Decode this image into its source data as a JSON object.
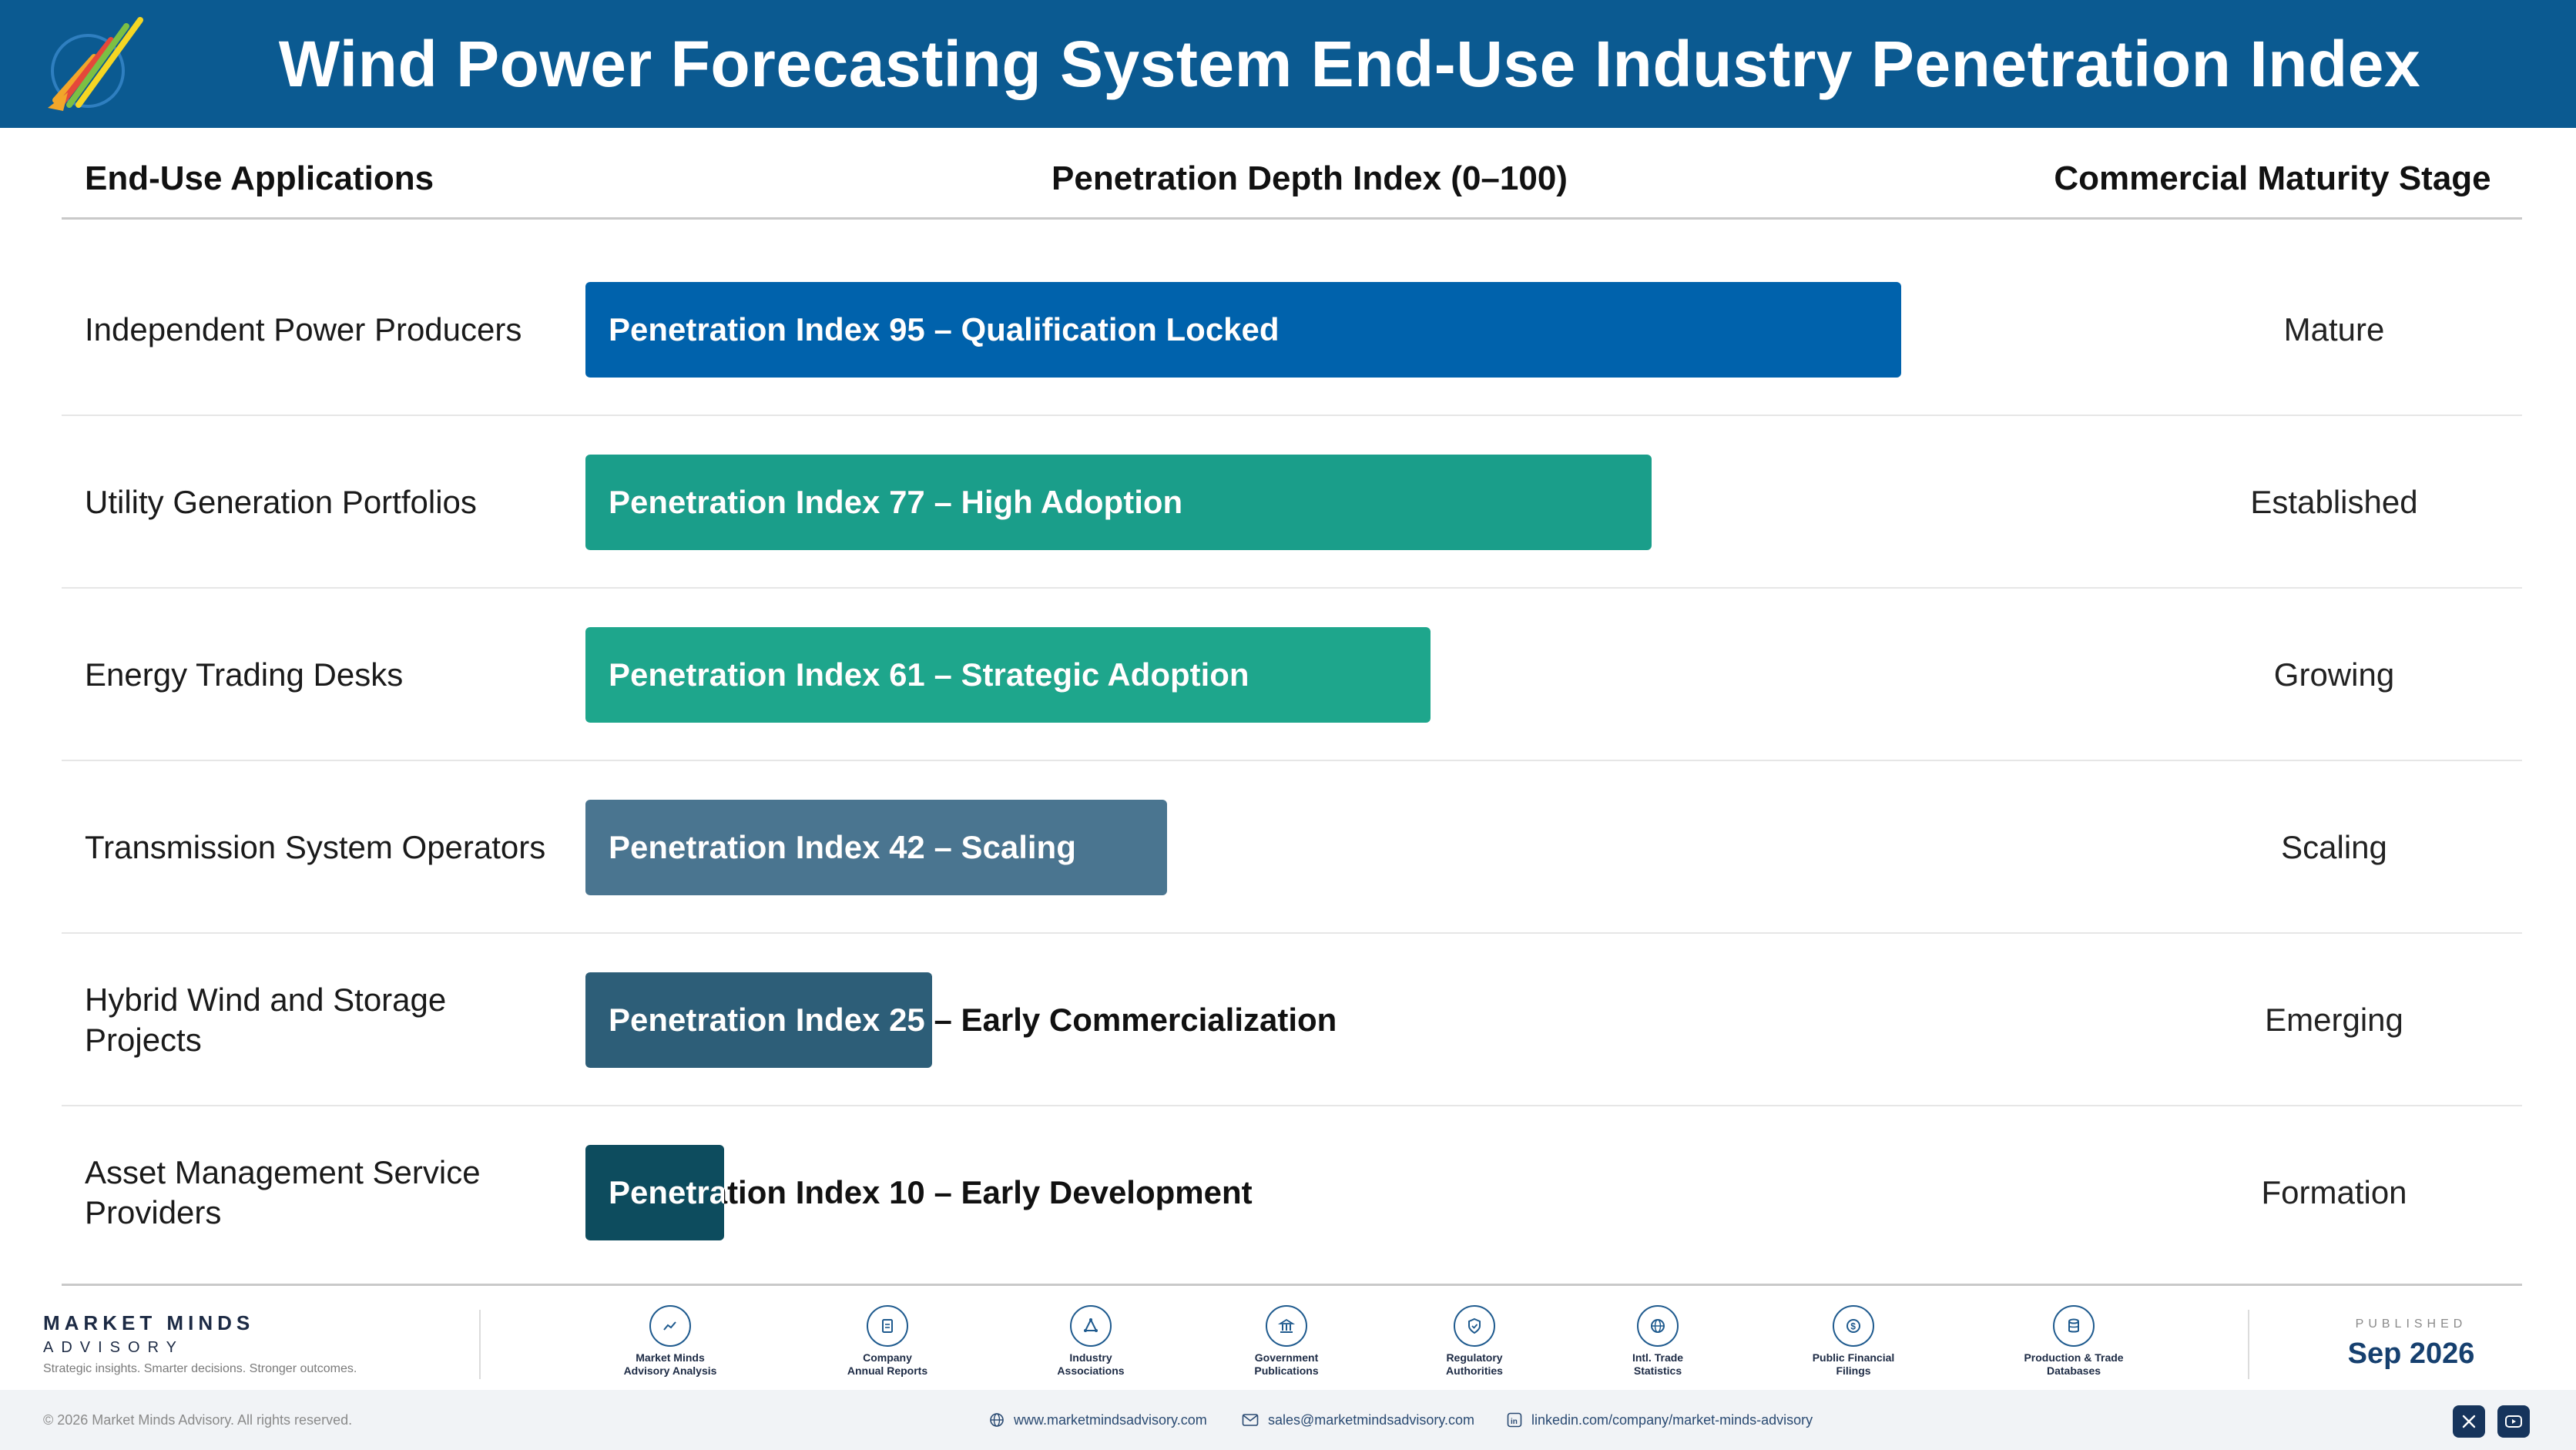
{
  "header": {
    "title": "Wind Power Forecasting System End-Use Industry Penetration Index"
  },
  "columns": {
    "applications": "End-Use Applications",
    "index": "Penetration Depth Index (0–100)",
    "stage": "Commercial Maturity Stage"
  },
  "chart_data": {
    "type": "bar",
    "orientation": "horizontal",
    "title": "Wind Power Forecasting System End-Use Industry Penetration Index",
    "xlabel": "Penetration Depth Index (0–100)",
    "xlim": [
      0,
      100
    ],
    "grid": false,
    "categories": [
      "Independent Power Producers",
      "Utility Generation Portfolios",
      "Energy Trading Desks",
      "Transmission System Operators",
      "Hybrid Wind and Storage Projects",
      "Asset Management Service Providers"
    ],
    "values": [
      95,
      77,
      61,
      42,
      25,
      10
    ],
    "labels": [
      "Penetration Index 95 – Qualification Locked",
      "Penetration Index 77 – High Adoption",
      "Penetration Index 61 – Strategic Adoption",
      "Penetration Index 42 – Scaling",
      "Penetration Index 25 – Early Commercialization",
      "Penetration Index 10 – Early Development"
    ],
    "stages": [
      "Mature",
      "Established",
      "Growing",
      "Scaling",
      "Emerging",
      "Formation"
    ],
    "colors": [
      "#0062ac",
      "#1a9e8a",
      "#1ea68c",
      "#4a7590",
      "#2d5e78",
      "#0d4c5e"
    ]
  },
  "footer": {
    "brand_name": "MARKET MINDS",
    "brand_sub": "ADVISORY",
    "tagline": "Strategic insights. Smarter decisions. Stronger outcomes.",
    "sources": [
      {
        "line1": "Market Minds",
        "line2": "Advisory Analysis",
        "icon": "chart-line-icon"
      },
      {
        "line1": "Company",
        "line2": "Annual Reports",
        "icon": "document-icon"
      },
      {
        "line1": "Industry",
        "line2": "Associations",
        "icon": "network-icon"
      },
      {
        "line1": "Government",
        "line2": "Publications",
        "icon": "building-icon"
      },
      {
        "line1": "Regulatory",
        "line2": "Authorities",
        "icon": "shield-icon"
      },
      {
        "line1": "Intl. Trade",
        "line2": "Statistics",
        "icon": "globe-icon"
      },
      {
        "line1": "Public Financial",
        "line2": "Filings",
        "icon": "coin-icon"
      },
      {
        "line1": "Production & Trade",
        "line2": "Databases",
        "icon": "database-icon"
      }
    ],
    "published_label": "PUBLISHED",
    "published_date": "Sep 2026",
    "copyright": "© 2026 Market Minds Advisory. All rights reserved.",
    "website": "www.marketmindsadvisory.com",
    "email": "sales@marketmindsadvisory.com",
    "linkedin": "linkedin.com/company/market-minds-advisory"
  }
}
